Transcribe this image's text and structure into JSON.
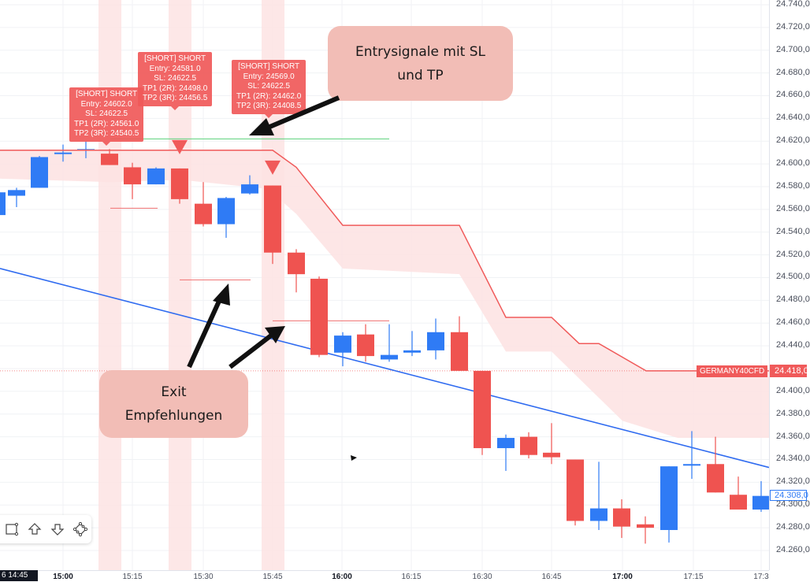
{
  "chart_data": {
    "type": "candlestick",
    "symbol": "GERMANY40CFD",
    "title": "",
    "xlabel": "",
    "ylabel": "",
    "ylim": [
      24250,
      24745
    ],
    "y_ticks": [
      "24.740,0",
      "24.720,0",
      "24.700,0",
      "24.680,0",
      "24.660,0",
      "24.640,0",
      "24.620,0",
      "24.600,0",
      "24.580,0",
      "24.560,0",
      "24.540,0",
      "24.520,0",
      "24.500,0",
      "24.480,0",
      "24.460,0",
      "24.440,0",
      "24.400,0",
      "24.380,0",
      "24.360,0",
      "24.340,0",
      "24.320,0",
      "24.300,0",
      "24.280,0",
      "24.260,0"
    ],
    "x_ticks": [
      {
        "label": "15:00",
        "bold": true,
        "x": 80
      },
      {
        "label": "15:15",
        "bold": false,
        "x": 168
      },
      {
        "label": "15:30",
        "bold": false,
        "x": 258
      },
      {
        "label": "15:45",
        "bold": false,
        "x": 346
      },
      {
        "label": "16:00",
        "bold": true,
        "x": 434
      },
      {
        "label": "16:15",
        "bold": false,
        "x": 522
      },
      {
        "label": "16:30",
        "bold": false,
        "x": 612
      },
      {
        "label": "16:45",
        "bold": false,
        "x": 700
      },
      {
        "label": "17:00",
        "bold": true,
        "x": 790
      },
      {
        "label": "17:15",
        "bold": false,
        "x": 880
      },
      {
        "label": "17:3",
        "bold": false,
        "x": 966
      }
    ],
    "candles": [
      {
        "x": -4,
        "open": 24555,
        "close": 24575,
        "high": 24578,
        "low": 24552,
        "dir": "up"
      },
      {
        "x": 21,
        "open": 24572,
        "close": 24577,
        "high": 24579,
        "low": 24562,
        "dir": "up"
      },
      {
        "x": 50,
        "open": 24579,
        "close": 24606,
        "high": 24607,
        "low": 24579,
        "dir": "up"
      },
      {
        "x": 80,
        "open": 24609,
        "close": 24610,
        "high": 24617,
        "low": 24602,
        "dir": "up"
      },
      {
        "x": 109,
        "open": 24612,
        "close": 24613,
        "high": 24620,
        "low": 24605,
        "dir": "up"
      },
      {
        "x": 139,
        "open": 24609,
        "close": 24599,
        "high": 24613,
        "low": 24599,
        "dir": "down"
      },
      {
        "x": 168,
        "open": 24597,
        "close": 24582,
        "high": 24601,
        "low": 24569,
        "dir": "down"
      },
      {
        "x": 198,
        "open": 24582,
        "close": 24596,
        "high": 24597,
        "low": 24582,
        "dir": "up"
      },
      {
        "x": 228,
        "open": 24596,
        "close": 24569,
        "high": 24596,
        "low": 24565,
        "dir": "down"
      },
      {
        "x": 258,
        "open": 24565,
        "close": 24547,
        "high": 24584,
        "low": 24545,
        "dir": "down"
      },
      {
        "x": 287,
        "open": 24547,
        "close": 24570,
        "high": 24571,
        "low": 24535,
        "dir": "up"
      },
      {
        "x": 317,
        "open": 24574,
        "close": 24582,
        "high": 24590,
        "low": 24573,
        "dir": "up"
      },
      {
        "x": 346,
        "open": 24581,
        "close": 24522,
        "high": 24581,
        "low": 24512,
        "dir": "down"
      },
      {
        "x": 376,
        "open": 24522,
        "close": 24503,
        "high": 24525,
        "low": 24487,
        "dir": "down"
      },
      {
        "x": 405,
        "open": 24499,
        "close": 24432,
        "high": 24501,
        "low": 24430,
        "dir": "down"
      },
      {
        "x": 435,
        "open": 24434,
        "close": 24449,
        "high": 24452,
        "low": 24422,
        "dir": "up"
      },
      {
        "x": 464,
        "open": 24450,
        "close": 24431,
        "high": 24459,
        "low": 24426,
        "dir": "down"
      },
      {
        "x": 494,
        "open": 24428,
        "close": 24432,
        "high": 24459,
        "low": 24426,
        "dir": "up"
      },
      {
        "x": 523,
        "open": 24434,
        "close": 24436,
        "high": 24453,
        "low": 24431,
        "dir": "up"
      },
      {
        "x": 553,
        "open": 24436,
        "close": 24452,
        "high": 24464,
        "low": 24428,
        "dir": "up"
      },
      {
        "x": 583,
        "open": 24452,
        "close": 24418,
        "high": 24466,
        "low": 24418,
        "dir": "down"
      },
      {
        "x": 612,
        "open": 24418,
        "close": 24350,
        "high": 24418,
        "low": 24344,
        "dir": "down"
      },
      {
        "x": 642,
        "open": 24350,
        "close": 24359,
        "high": 24362,
        "low": 24330,
        "dir": "up"
      },
      {
        "x": 671,
        "open": 24360,
        "close": 24344,
        "high": 24364,
        "low": 24341,
        "dir": "down"
      },
      {
        "x": 700,
        "open": 24346,
        "close": 24342,
        "high": 24372,
        "low": 24336,
        "dir": "down"
      },
      {
        "x": 730,
        "open": 24340,
        "close": 24286,
        "high": 24340,
        "low": 24282,
        "dir": "down"
      },
      {
        "x": 760,
        "open": 24286,
        "close": 24297,
        "high": 24338,
        "low": 24278,
        "dir": "up"
      },
      {
        "x": 789,
        "open": 24297,
        "close": 24281,
        "high": 24305,
        "low": 24271,
        "dir": "down"
      },
      {
        "x": 819,
        "open": 24283,
        "close": 24280,
        "high": 24290,
        "low": 24266,
        "dir": "down"
      },
      {
        "x": 849,
        "open": 24278,
        "close": 24334,
        "high": 24334,
        "low": 24267,
        "dir": "up"
      },
      {
        "x": 878,
        "open": 24335,
        "close": 24336,
        "high": 24365,
        "low": 24323,
        "dir": "up"
      },
      {
        "x": 908,
        "open": 24336,
        "close": 24311,
        "high": 24360,
        "low": 24311,
        "dir": "down"
      },
      {
        "x": 937,
        "open": 24309,
        "close": 24296,
        "high": 24325,
        "low": 24296,
        "dir": "down"
      },
      {
        "x": 966,
        "open": 24296,
        "close": 24308,
        "high": 24321,
        "low": 24294,
        "dir": "up"
      }
    ],
    "trendline": {
      "x1": 0,
      "p1": 24508,
      "x2": 976,
      "p2": 24333,
      "color": "#2f6bf0"
    },
    "upper_band": {
      "line_color": "#f05a5a",
      "fill_color": "#fde2e2",
      "upper_points": [
        [
          0,
          24612
        ],
        [
          346,
          24612
        ],
        [
          376,
          24597
        ],
        [
          435,
          24546
        ],
        [
          583,
          24546
        ],
        [
          642,
          24465
        ],
        [
          700,
          24465
        ],
        [
          735,
          24442
        ],
        [
          760,
          24442
        ],
        [
          820,
          24418
        ],
        [
          976,
          24418
        ]
      ],
      "lower_points": [
        [
          0,
          24587
        ],
        [
          140,
          24584
        ],
        [
          230,
          24586
        ],
        [
          340,
          24578
        ],
        [
          376,
          24556
        ],
        [
          435,
          24508
        ],
        [
          583,
          24503
        ],
        [
          642,
          24435
        ],
        [
          700,
          24435
        ],
        [
          790,
          24374
        ],
        [
          860,
          24359
        ],
        [
          976,
          24359
        ]
      ]
    },
    "signal_bands": [
      {
        "x": 125,
        "width": 29
      },
      {
        "x": 214,
        "width": 29
      },
      {
        "x": 332,
        "width": 29
      }
    ],
    "signal_markers": [
      {
        "x": 228,
        "p": 24614
      },
      {
        "x": 346,
        "p": 24596
      }
    ],
    "tp_line": {
      "x1": 140,
      "x2": 494,
      "p": 24622,
      "color": "#5ad17a"
    },
    "exit_lines": [
      {
        "x1": 140,
        "x2": 200,
        "p": 24561
      },
      {
        "x1": 228,
        "x2": 318,
        "p": 24498
      },
      {
        "x1": 346,
        "x2": 494,
        "p": 24462
      }
    ],
    "last_price_line": {
      "p": 24418,
      "color": "#f05a5a"
    }
  },
  "signals": [
    {
      "header": "[SHORT] SHORT",
      "entry": "Entry: 24602.0",
      "sl": "SL: 24622.5",
      "tp1": "TP1 (2R): 24561.0",
      "tp2": "TP2 (3R): 24540.5"
    },
    {
      "header": "[SHORT] SHORT",
      "entry": "Entry: 24581.0",
      "sl": "SL: 24622.5",
      "tp1": "TP1 (2R): 24498.0",
      "tp2": "TP2 (3R): 24456.5"
    },
    {
      "header": "[SHORT] SHORT",
      "entry": "Entry: 24569.0",
      "sl": "SL: 24622.5",
      "tp1": "TP1 (2R): 24462.0",
      "tp2": "TP2 (3R): 24408.5"
    }
  ],
  "callouts": {
    "entry": {
      "line1": "Entrysignale mit SL",
      "line2": "und TP"
    },
    "exit": {
      "line1": "Exit",
      "line2": "Empfehlungen"
    }
  },
  "tags": {
    "symbol": "GERMANY40CFD",
    "last_price": "24.418,0",
    "current_price": "24.308,0"
  },
  "time_cursor": "6  14:45",
  "colors": {
    "up": "#2f7bf5",
    "down": "#ef5350",
    "band_fill": "#fde2e2",
    "signal_band": "#fde4e4",
    "grid": "#f0f2f5"
  }
}
